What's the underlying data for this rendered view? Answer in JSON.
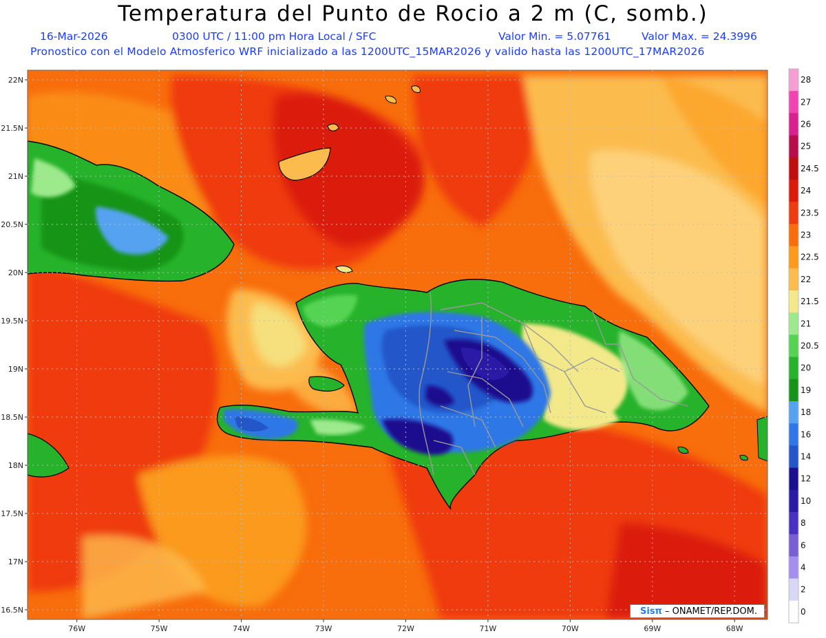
{
  "header": {
    "title": "Temperatura del Punto de Rocio a 2 m (C, somb.)",
    "date": "16-Mar-2026",
    "time": "0300 UTC / 11:00 pm Hora Local / SFC",
    "min_label": "Valor Min. = 5.07761",
    "max_label": "Valor Max. = 24.3996",
    "line2": "Pronostico con el Modelo Atmosferico WRF inicializado a las 1200UTC_15MAR2026 y valido hasta las  1200UTC_17MAR2026"
  },
  "map": {
    "lat_labels": [
      "22N",
      "21.5N",
      "21N",
      "20.5N",
      "20N",
      "19.5N",
      "19N",
      "18.5N",
      "18N",
      "17.5N",
      "17N",
      "16.5N"
    ],
    "lon_labels": [
      "76W",
      "75W",
      "74W",
      "73W",
      "72W",
      "71W",
      "70W",
      "69W",
      "68W"
    ],
    "lat_range": [
      16.4,
      22.1
    ],
    "lon_range": [
      -76.6,
      -67.6
    ]
  },
  "legend": {
    "values": [
      "0",
      "2",
      "4",
      "6",
      "8",
      "10",
      "12",
      "14",
      "16",
      "18",
      "19",
      "20",
      "20.5",
      "21",
      "21.5",
      "22",
      "22.5",
      "23",
      "23.5",
      "24",
      "24.5",
      "25",
      "26",
      "27",
      "28"
    ],
    "colors": [
      "#ffffff",
      "#d8d8f6",
      "#a58ef0",
      "#7a5ed6",
      "#4a31c1",
      "#2a1aa6",
      "#1a0f8e",
      "#2356c9",
      "#2f77e6",
      "#54a3f0",
      "#179417",
      "#26b22a",
      "#55d452",
      "#9cea8c",
      "#f3e98a",
      "#fcbc4d",
      "#fb9a1b",
      "#f86d0c",
      "#ef3b10",
      "#db1a0a",
      "#c00d0d",
      "#b80c4d",
      "#d8208e",
      "#f044b2",
      "#f59ed4"
    ]
  },
  "credit": {
    "brand": "Sisπ",
    "text": " – ONAMET/REP.DOM."
  }
}
